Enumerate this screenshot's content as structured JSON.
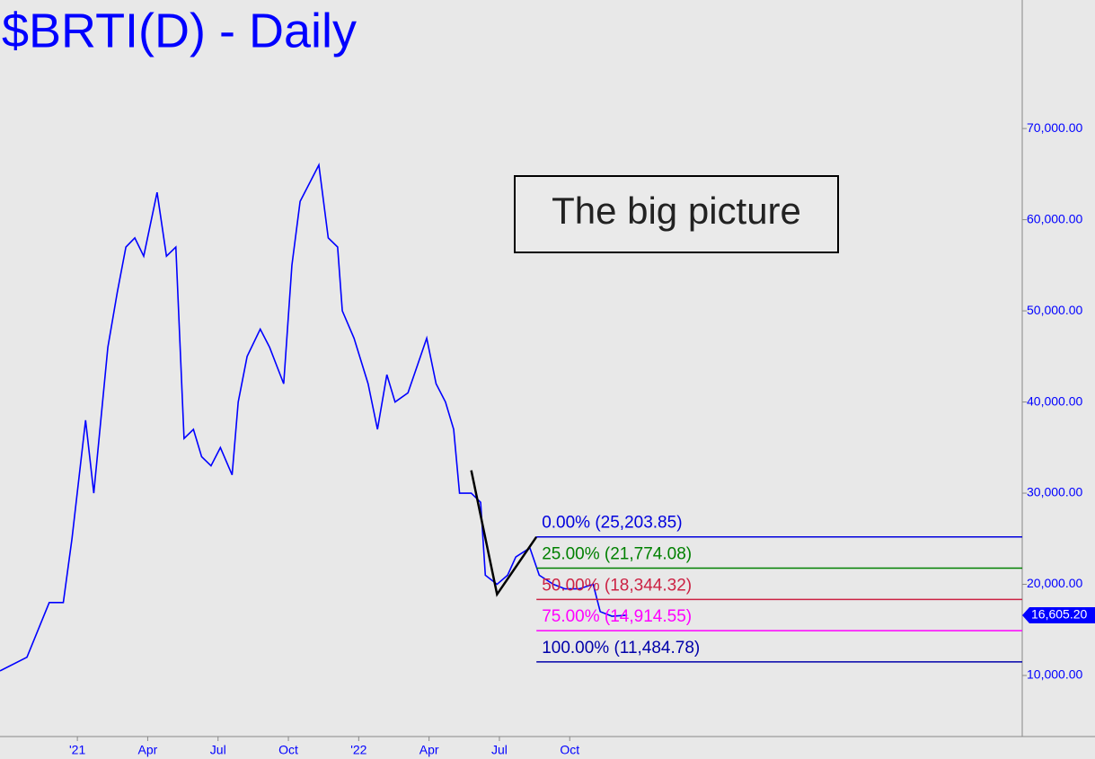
{
  "chart_data": {
    "type": "line",
    "title": "$BRTI(D) - Daily",
    "annotation": "The big picture",
    "xlim": [
      -3.3,
      40.3
    ],
    "xticks": [
      {
        "value": 0,
        "label": "'21"
      },
      {
        "value": 3,
        "label": "Apr"
      },
      {
        "value": 6,
        "label": "Jul"
      },
      {
        "value": 9,
        "label": "Oct"
      },
      {
        "value": 12,
        "label": "'22"
      },
      {
        "value": 15,
        "label": "Apr"
      },
      {
        "value": 18,
        "label": "Jul"
      },
      {
        "value": 21,
        "label": "Oct"
      }
    ],
    "ylim": [
      3300,
      84100
    ],
    "yticks": [
      {
        "value": 10000,
        "label": "10,000.00"
      },
      {
        "value": 20000,
        "label": "20,000.00"
      },
      {
        "value": 30000,
        "label": "30,000.00"
      },
      {
        "value": 40000,
        "label": "40,000.00"
      },
      {
        "value": 50000,
        "label": "50,000.00"
      },
      {
        "value": 60000,
        "label": "60,000.00"
      },
      {
        "value": 70000,
        "label": "70,000.00"
      }
    ],
    "series": [
      {
        "color": "#0000ff",
        "x": [
          -3.3,
          -2.15,
          -1.2,
          -0.6,
          -0.23,
          0.35,
          0.7,
          1.3,
          1.7,
          2.07,
          2.45,
          2.83,
          3.4,
          3.8,
          4.2,
          4.55,
          4.95,
          5.3,
          5.7,
          6.1,
          6.6,
          6.86,
          7.24,
          7.8,
          8.2,
          8.8,
          9.15,
          9.5,
          9.9,
          10.3,
          10.7,
          11.1,
          11.3,
          11.8,
          12.4,
          12.8,
          13.2,
          13.55,
          14.1,
          14.5,
          14.9,
          15.3,
          15.7,
          16.05,
          16.3,
          16.8,
          17.2,
          17.4,
          17.9,
          18.35,
          18.7,
          19.3,
          19.7,
          20.3,
          20.8,
          21.4,
          22.0,
          22.3,
          22.8,
          23.45
        ],
        "values": [
          10500,
          12000,
          18000,
          18000,
          25000,
          38000,
          30000,
          46000,
          52000,
          57000,
          58000,
          56000,
          63000,
          56000,
          57000,
          36000,
          37000,
          34000,
          33000,
          35000,
          32000,
          40000,
          45000,
          48000,
          46000,
          42000,
          55000,
          62000,
          64000,
          66000,
          58000,
          57000,
          50000,
          47000,
          42000,
          37000,
          43000,
          40000,
          41000,
          44000,
          47000,
          42000,
          40000,
          37000,
          30000,
          30000,
          29000,
          21000,
          20000,
          21000,
          23000,
          24000,
          21000,
          20000,
          19500,
          19500,
          20000,
          17000,
          16500,
          16605
        ]
      }
    ],
    "swing": {
      "color": "#000000",
      "x": [
        16.8,
        17.9,
        19.58
      ],
      "values": [
        32500,
        18900,
        25203.85
      ]
    },
    "last_label": {
      "value": 16605.2,
      "label": "16,605.20"
    },
    "fib_levels": [
      {
        "label": "0.00% (25,203.85)",
        "value": 25203.85,
        "color": "#0000dd"
      },
      {
        "label": "25.00% (21,774.08)",
        "value": 21774.08,
        "color": "#008000"
      },
      {
        "label": "50.00% (18,344.32)",
        "value": 18344.32,
        "color": "#cc2244"
      },
      {
        "label": "75.00% (14,914.55)",
        "value": 14914.55,
        "color": "#ff00ff"
      },
      {
        "label": "100.00% (11,484.78)",
        "value": 11484.78,
        "color": "#0000aa"
      }
    ]
  }
}
